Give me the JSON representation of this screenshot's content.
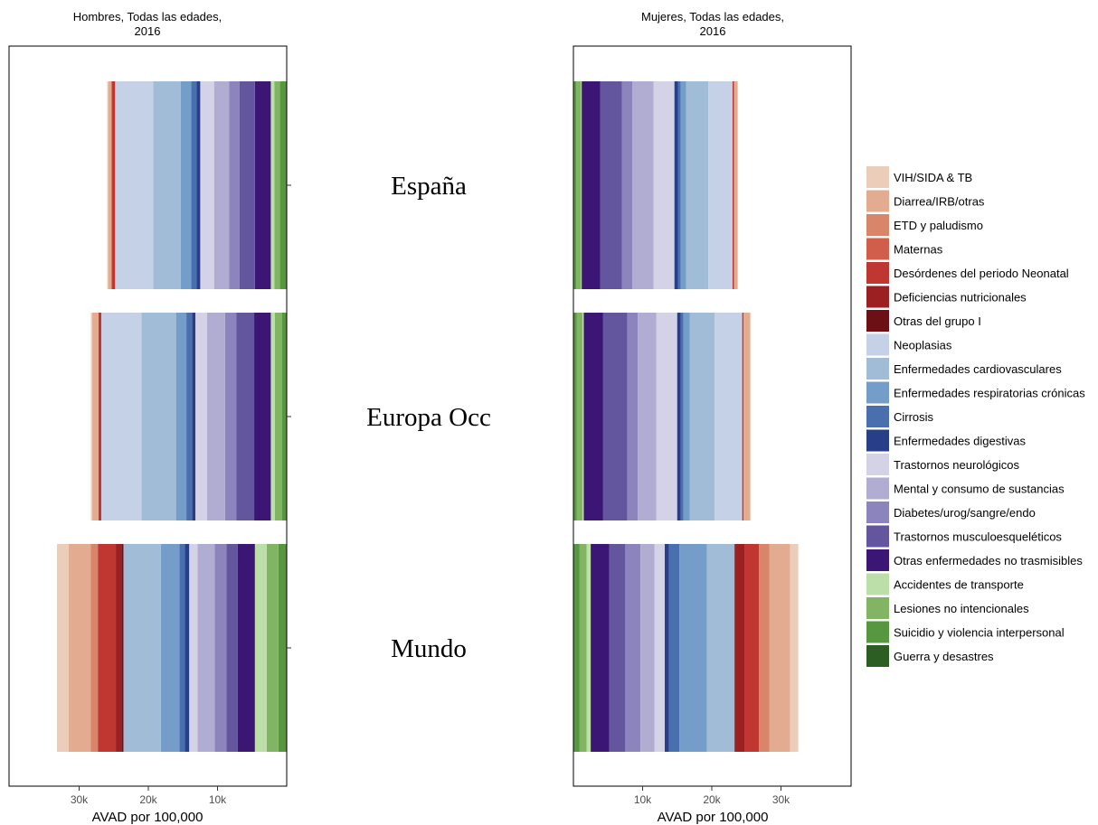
{
  "chart_data": {
    "type": "bar",
    "orientation": "horizontal-stacked-mirrored",
    "categories": [
      "España",
      "Europa Occ",
      "Mundo"
    ],
    "xlabel": "AVAD por 100,000",
    "xlim": [
      0,
      40000
    ],
    "x_ticks": [
      10000,
      20000,
      30000
    ],
    "x_tick_labels": [
      "10k",
      "20k",
      "30k"
    ],
    "grid": false,
    "legend_position": "right",
    "causes": [
      {
        "name": "VIH/SIDA & TB",
        "color": "#ebcdb9"
      },
      {
        "name": "Diarrea/IRB/otras",
        "color": "#e3ab8f"
      },
      {
        "name": "ETD y paludismo",
        "color": "#d9856a"
      },
      {
        "name": "Maternas",
        "color": "#d05e4a"
      },
      {
        "name": "Desórdenes del periodo Neonatal",
        "color": "#c03630"
      },
      {
        "name": "Deficiencias nutricionales",
        "color": "#9c1f22"
      },
      {
        "name": "Otras del grupo I",
        "color": "#6c1016"
      },
      {
        "name": "Neoplasias",
        "color": "#c4d1e6"
      },
      {
        "name": "Enfermedades cardiovasculares",
        "color": "#a1bcd6"
      },
      {
        "name": "Enfermedades respiratorias crónicas",
        "color": "#759dca"
      },
      {
        "name": "Cirrosis",
        "color": "#4a6fae"
      },
      {
        "name": "Enfermedades digestivas",
        "color": "#283e88"
      },
      {
        "name": "Trastornos neurológicos",
        "color": "#d3d2e7"
      },
      {
        "name": "Mental y consumo de sustancias",
        "color": "#b1acd2"
      },
      {
        "name": "Diabetes/urog/sangre/endo",
        "color": "#8c84bc"
      },
      {
        "name": "Trastornos musculoesqueléticos",
        "color": "#64559f"
      },
      {
        "name": "Otras enfermedades no trasmisibles",
        "color": "#3b1675"
      },
      {
        "name": "Accidentes de transporte",
        "color": "#bcdea8"
      },
      {
        "name": "Lesiones no intencionales",
        "color": "#81b563"
      },
      {
        "name": "Suicidio y violencia interpersonal",
        "color": "#56973f"
      },
      {
        "name": "Guerra y desastres",
        "color": "#2c5d22"
      }
    ],
    "panels": [
      {
        "title_line1": "Hombres, Todas las edades,",
        "title_line2": "2016",
        "direction": "left",
        "series": [
          {
            "category": "España",
            "values": [
              150,
              500,
              0,
              0,
              500,
              0,
              0,
              5500,
              4000,
              1500,
              800,
              500,
              2000,
              2200,
              1500,
              2200,
              2300,
              500,
              800,
              1000,
              0
            ]
          },
          {
            "category": "Europa Occ",
            "values": [
              200,
              900,
              0,
              0,
              400,
              0,
              0,
              5800,
              5000,
              1500,
              800,
              500,
              1700,
              2600,
              1600,
              2600,
              2400,
              600,
              1000,
              700,
              0
            ]
          },
          {
            "category": "Mundo",
            "values": [
              1700,
              3200,
              1000,
              0,
              2600,
              800,
              300,
              0,
              5400,
              2700,
              800,
              600,
              1200,
              2500,
              1700,
              1600,
              2500,
              1700,
              1700,
              1200,
              0
            ]
          }
        ]
      },
      {
        "title_line1": "Mujeres, Todas las edades,",
        "title_line2": "2016",
        "direction": "right",
        "series": [
          {
            "category": "España",
            "values": [
              100,
              500,
              0,
              0,
              200,
              0,
              0,
              3500,
              3200,
              800,
              400,
              500,
              3000,
              3100,
              1500,
              3100,
              2700,
              100,
              700,
              400,
              0
            ]
          },
          {
            "category": "Europa Occ",
            "values": [
              150,
              900,
              0,
              0,
              200,
              0,
              0,
              4000,
              3600,
              900,
              400,
              500,
              3000,
              2700,
              1500,
              3500,
              2800,
              200,
              800,
              500,
              0
            ]
          },
          {
            "category": "Mundo",
            "values": [
              1200,
              3000,
              1500,
              0,
              2000,
              1300,
              200,
              0,
              4000,
              4000,
              1500,
              600,
              1500,
              2000,
              2200,
              2300,
              2700,
              600,
              1000,
              900,
              0
            ]
          }
        ]
      }
    ]
  }
}
